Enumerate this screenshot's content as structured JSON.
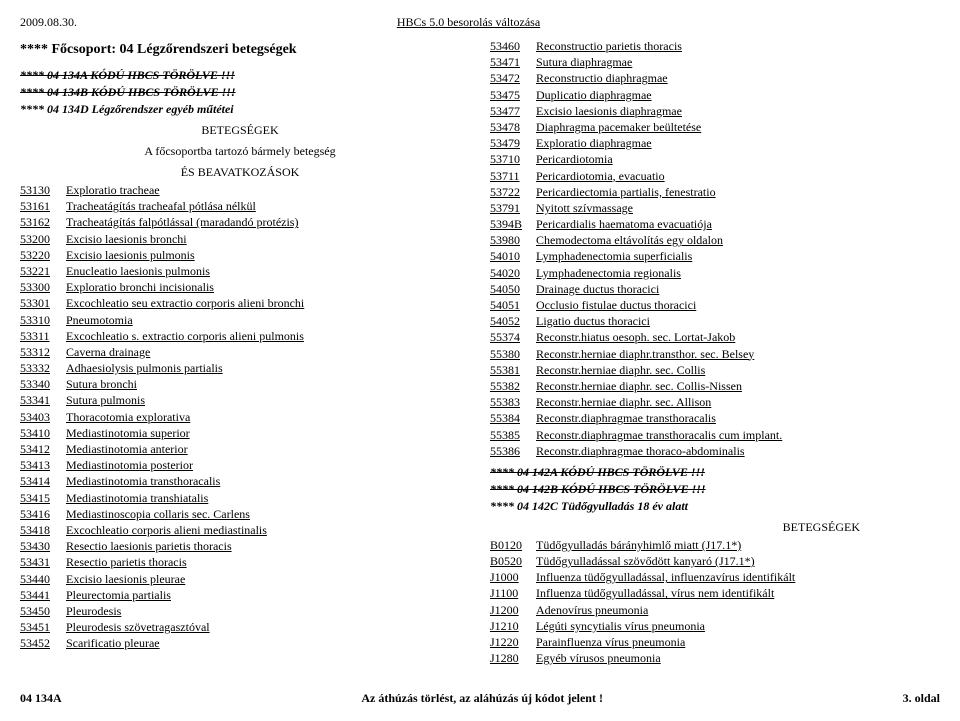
{
  "header": {
    "date": "2009.08.30.",
    "title": "HBCs 5.0 besorolás változása"
  },
  "left": {
    "group": "**** Főcsoport: 04 Légzőrendszeri betegségek",
    "deleted_lines": [
      "**** 04 134A    KÓDÚ HBCS TÖRÖLVE !!!",
      "**** 04 134B    KÓDÚ HBCS TÖRÖLVE !!!"
    ],
    "kept_line": "**** 04 134D   Légzőrendszer egyéb műtétei",
    "section1": "BETEGSÉGEK",
    "section1b": "A főcsoportba tartozó bármely betegség",
    "section2": "ÉS BEAVATKOZÁSOK",
    "rows": [
      [
        "53130",
        "Exploratio tracheae"
      ],
      [
        "53161",
        "Tracheatágítás tracheafal pótlása nélkül"
      ],
      [
        "53162",
        "Tracheatágítás falpótlással (maradandó protézis)"
      ],
      [
        "53200",
        "Excisio    laesionis bronchi"
      ],
      [
        "53220",
        "Excisio    laesionis pulmonis"
      ],
      [
        "53221",
        "Enucleatio laesionis pulmonis"
      ],
      [
        "53300",
        "Exploratio bronchi incisionalis"
      ],
      [
        "53301",
        "Excochleatio seu extractio corporis alieni bronchi"
      ],
      [
        "53310",
        "Pneumotomia"
      ],
      [
        "53311",
        "Excochleatio s. extractio corporis alieni pulmonis"
      ],
      [
        "53312",
        "Caverna drainage"
      ],
      [
        "53332",
        "Adhaesiolysis pulmonis partialis"
      ],
      [
        "53340",
        "Sutura bronchi"
      ],
      [
        "53341",
        "Sutura pulmonis"
      ],
      [
        "53403",
        "Thoracotomia explorativa"
      ],
      [
        "53410",
        "Mediastinotomia superior"
      ],
      [
        "53412",
        "Mediastinotomia anterior"
      ],
      [
        "53413",
        "Mediastinotomia posterior"
      ],
      [
        "53414",
        "Mediastinotomia transthoracalis"
      ],
      [
        "53415",
        "Mediastinotomia transhiatalis"
      ],
      [
        "53416",
        "Mediastinoscopia collaris sec. Carlens"
      ],
      [
        "53418",
        "Excochleatio corporis alieni mediastinalis"
      ],
      [
        "53430",
        "Resectio laesionis parietis thoracis"
      ],
      [
        "53431",
        "Resectio parietis thoracis"
      ],
      [
        "53440",
        "Excisio laesionis pleurae"
      ],
      [
        "53441",
        "Pleurectomia partialis"
      ],
      [
        "53450",
        "Pleurodesis"
      ],
      [
        "53451",
        "Pleurodesis szövetragasztóval"
      ],
      [
        "53452",
        "Scarificatio pleurae"
      ]
    ]
  },
  "right": {
    "rows": [
      [
        "53460",
        "Reconstructio parietis thoracis"
      ],
      [
        "53471",
        "Sutura          diaphragmae"
      ],
      [
        "53472",
        "Reconstructio diaphragmae"
      ],
      [
        "53475",
        "Duplicatio   diaphragmae"
      ],
      [
        "53477",
        "Excisio laesionis diaphragmae"
      ],
      [
        "53478",
        "Diaphragma pacemaker beültetése"
      ],
      [
        "53479",
        "Exploratio   diaphragmae"
      ],
      [
        "53710",
        "Pericardiotomia"
      ],
      [
        "53711",
        "Pericardiotomia, evacuatio"
      ],
      [
        "53722",
        "Pericardiectomia partialis, fenestratio"
      ],
      [
        "53791",
        "Nyitott szívmassage"
      ],
      [
        "5394B",
        "Pericardialis haematoma evacuatiója"
      ],
      [
        "53980",
        "Chemodectoma eltávolítás egy oldalon"
      ],
      [
        "54010",
        "Lymphadenectomia superficialis"
      ],
      [
        "54020",
        "Lymphadenectomia regionalis"
      ],
      [
        "54050",
        "Drainage ductus thoracici"
      ],
      [
        "54051",
        "Occlusio fistulae ductus thoracici"
      ],
      [
        "54052",
        "Ligatio ductus thoracici"
      ],
      [
        "55374",
        "Reconstr.hiatus oesoph. sec. Lortat-Jakob"
      ],
      [
        "55380",
        "Reconstr.herniae diaphr.transthor. sec. Belsey"
      ],
      [
        "55381",
        "Reconstr.herniae diaphr. sec. Collis"
      ],
      [
        "55382",
        "Reconstr.herniae diaphr. sec. Collis-Nissen"
      ],
      [
        "55383",
        "Reconstr.herniae diaphr. sec. Allison"
      ],
      [
        "55384",
        "Reconstr.diaphragmae transthoracalis"
      ],
      [
        "55385",
        "Reconstr.diaphragmae transthoracalis cum implant."
      ],
      [
        "55386",
        "Reconstr.diaphragmae thoraco-abdominalis"
      ]
    ],
    "deleted_lines": [
      "**** 04 142A    KÓDÚ HBCS TÖRÖLVE !!!",
      "**** 04 142B    KÓDÚ HBCS TÖRÖLVE !!!"
    ],
    "kept_line": "**** 04 142C   Tüdőgyulladás 18 év alatt",
    "section1": "BETEGSÉGEK",
    "rows2": [
      [
        "B0120",
        "Tüdőgyulladás bárányhimlő miatt (J17.1*)"
      ],
      [
        "B0520",
        "Tüdőgyulladással szövődött kanyaró (J17.1*)"
      ],
      [
        "J1000",
        "Influenza tüdőgyulladással, influenzavírus identifikált"
      ],
      [
        "J1100",
        "Influenza tüdőgyulladással, vírus nem identifikált"
      ],
      [
        "J1200",
        "Adenovírus pneumonia"
      ],
      [
        "J1210",
        "Légúti syncytialis vírus pneumonia"
      ],
      [
        "J1220",
        "Parainfluenza vírus pneumonia"
      ],
      [
        "J1280",
        "Egyéb vírusos pneumonia"
      ]
    ]
  },
  "footer": {
    "left": "04 134A",
    "mid": "Az áthúzás törlést, az aláhúzás új kódot jelent !",
    "right": "3. oldal"
  }
}
